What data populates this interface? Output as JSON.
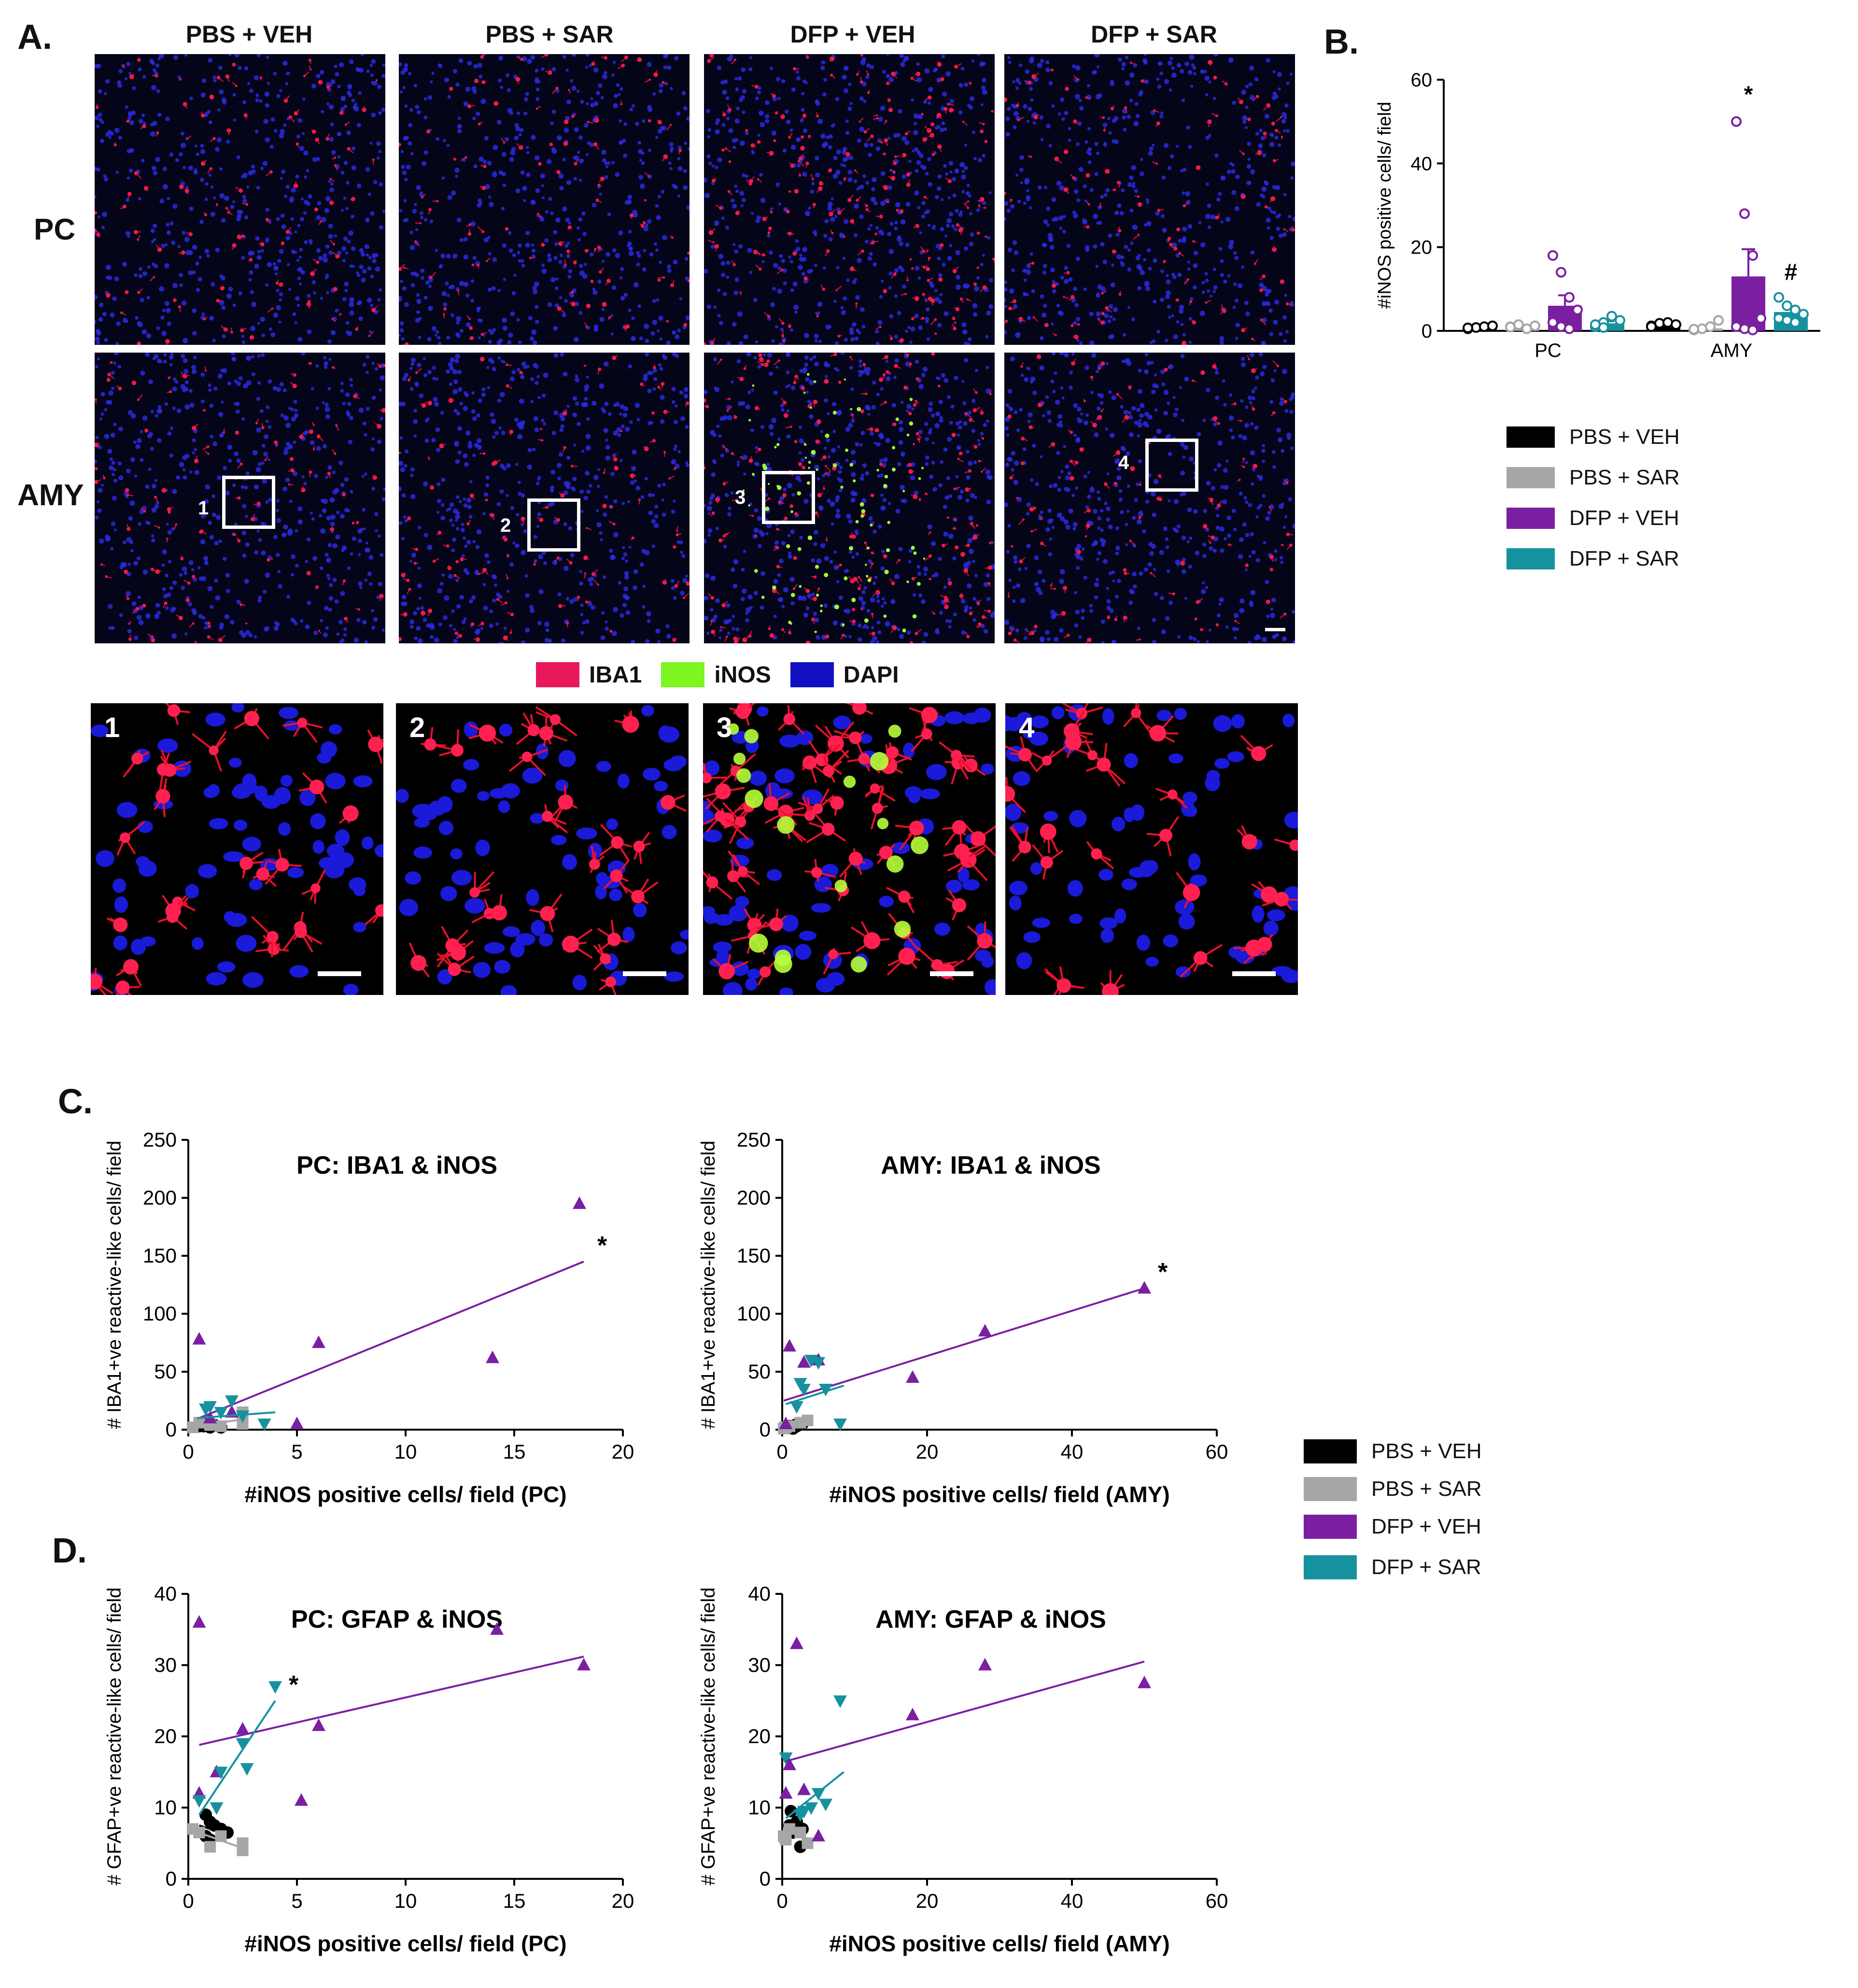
{
  "panels": {
    "A": "A.",
    "B": "B.",
    "C": "C.",
    "D": "D."
  },
  "columns": [
    "PBS + VEH",
    "PBS + SAR",
    "DFP + VEH",
    "DFP + SAR"
  ],
  "rows": [
    "PC",
    "AMY"
  ],
  "insets": [
    "1",
    "2",
    "3",
    "4"
  ],
  "stain_legend": [
    {
      "label": "IBA1",
      "color": "#e8185a"
    },
    {
      "label": "iNOS",
      "color": "#7cf520"
    },
    {
      "label": "DAPI",
      "color": "#1010c0"
    }
  ],
  "groups": [
    {
      "label": "PBS + VEH",
      "color": "#000000"
    },
    {
      "label": "PBS + SAR",
      "color": "#a6a6a6"
    },
    {
      "label": "DFP + VEH",
      "color": "#7b1fa2"
    },
    {
      "label": "DFP + SAR",
      "color": "#16929f"
    }
  ],
  "chart_data": [
    {
      "id": "B",
      "type": "bar",
      "ylabel": "#iNOS positive cells/ field",
      "ylim": [
        0,
        60
      ],
      "yticks": [
        0,
        20,
        40,
        60
      ],
      "categories": [
        "PC",
        "AMY"
      ],
      "series": [
        {
          "name": "PBS + VEH",
          "values": [
            0.8,
            1.5
          ],
          "points": [
            [
              0.5,
              0.8,
              1,
              1.2,
              0.7
            ],
            [
              1.2,
              1.8,
              2,
              1.5,
              1
            ]
          ]
        },
        {
          "name": "PBS + SAR",
          "values": [
            1.0,
            0.6
          ],
          "points": [
            [
              1,
              1.5,
              0.5,
              1.2,
              0.9
            ],
            [
              0.2,
              0.5,
              1,
              2.5,
              0.4
            ]
          ]
        },
        {
          "name": "DFP + VEH",
          "values": [
            6.0,
            13.0
          ],
          "sem": [
            2.5,
            6.5
          ],
          "points": [
            [
              18,
              14,
              8,
              5,
              2,
              1,
              0.5
            ],
            [
              50,
              28,
              18,
              3,
              1,
              0.5,
              0.2
            ]
          ]
        },
        {
          "name": "DFP + SAR",
          "values": [
            1.8,
            4.5
          ],
          "sem": [
            0.5,
            1.2
          ],
          "points": [
            [
              1,
              2,
              3.5,
              2.5,
              1.5,
              0.8
            ],
            [
              8,
              6,
              5,
              4,
              3,
              2.5,
              2
            ]
          ]
        }
      ],
      "annotations": [
        {
          "text": "*",
          "category": "AMY",
          "series": "DFP + VEH"
        },
        {
          "text": "#",
          "category": "AMY",
          "series": "DFP + SAR"
        }
      ]
    },
    {
      "id": "C-PC",
      "type": "scatter",
      "title": "PC: IBA1 & iNOS",
      "xlabel": "#iNOS positive cells/ field (PC)",
      "ylabel": "# IBA1+ve reactive-like cells/ field",
      "xlim": [
        0,
        20
      ],
      "ylim": [
        0,
        250
      ],
      "xticks": [
        0,
        5,
        10,
        15,
        20
      ],
      "yticks": [
        0,
        50,
        100,
        150,
        200,
        250
      ],
      "series": [
        {
          "name": "PBS + VEH",
          "x": [
            0.5,
            0.8,
            1,
            1.2,
            0.7,
            1.5
          ],
          "y": [
            3,
            5,
            2,
            4,
            3,
            2
          ],
          "fit": [
            [
              0.3,
              4
            ],
            [
              1.8,
              3
            ]
          ]
        },
        {
          "name": "PBS + SAR",
          "x": [
            0.2,
            1,
            1.5,
            2.5,
            2.5,
            0.5
          ],
          "y": [
            2,
            4,
            3,
            15,
            5,
            6
          ],
          "fit": [
            [
              0.2,
              3
            ],
            [
              2.6,
              9
            ]
          ]
        },
        {
          "name": "DFP + VEH",
          "x": [
            18,
            14,
            6,
            0.5,
            5,
            2,
            1
          ],
          "y": [
            195,
            62,
            75,
            78,
            5,
            15,
            10
          ],
          "fit": [
            [
              0.5,
              10
            ],
            [
              18.2,
              145
            ]
          ]
        },
        {
          "name": "DFP + SAR",
          "x": [
            1,
            2,
            3.5,
            2.5,
            1.5,
            0.8
          ],
          "y": [
            20,
            25,
            5,
            12,
            15,
            18
          ],
          "fit": [
            [
              0.4,
              10
            ],
            [
              4,
              15
            ]
          ]
        }
      ],
      "annotations": [
        {
          "text": "*",
          "series": "DFP + VEH"
        }
      ]
    },
    {
      "id": "C-AMY",
      "type": "scatter",
      "title": "AMY: IBA1 & iNOS",
      "xlabel": "#iNOS positive cells/ field (AMY)",
      "ylabel": "# IBA1+ve reactive-like cells/ field",
      "xlim": [
        0,
        60
      ],
      "ylim": [
        0,
        250
      ],
      "xticks": [
        0,
        20,
        40,
        60
      ],
      "yticks": [
        0,
        50,
        100,
        150,
        200,
        250
      ],
      "series": [
        {
          "name": "PBS + VEH",
          "x": [
            1.2,
            1.8,
            2,
            1.5,
            1,
            2.8
          ],
          "y": [
            2,
            4,
            3,
            1,
            3,
            5
          ]
        },
        {
          "name": "PBS + SAR",
          "x": [
            0.2,
            0.5,
            1,
            2.5,
            3.5,
            0.4
          ],
          "y": [
            1,
            2,
            3,
            6,
            8,
            2
          ]
        },
        {
          "name": "DFP + VEH",
          "x": [
            50,
            28,
            18,
            3,
            1,
            0.5,
            5
          ],
          "y": [
            122,
            85,
            45,
            58,
            72,
            5,
            60
          ],
          "fit": [
            [
              0.2,
              25
            ],
            [
              50,
              122
            ]
          ]
        },
        {
          "name": "DFP + SAR",
          "x": [
            8,
            6,
            5,
            4,
            3,
            2.5,
            2
          ],
          "y": [
            5,
            35,
            58,
            60,
            35,
            40,
            20
          ],
          "fit": [
            [
              0.5,
              22
            ],
            [
              8.5,
              38
            ]
          ]
        }
      ],
      "annotations": [
        {
          "text": "*",
          "series": "DFP + VEH"
        }
      ]
    },
    {
      "id": "D-PC",
      "type": "scatter",
      "title": "PC: GFAP & iNOS",
      "xlabel": "#iNOS positive cells/ field (PC)",
      "ylabel": "# GFAP+ve reactive-like cells/ field",
      "xlim": [
        0,
        20
      ],
      "ylim": [
        0,
        40
      ],
      "xticks": [
        0,
        5,
        10,
        15,
        20
      ],
      "yticks": [
        0,
        10,
        20,
        30,
        40
      ],
      "series": [
        {
          "name": "PBS + VEH",
          "x": [
            0.8,
            1.5,
            1,
            1.2,
            1.8,
            0.8,
            1
          ],
          "y": [
            9,
            7,
            8,
            7.5,
            6.5,
            6,
            5.5
          ],
          "fit": [
            [
              0.5,
              7.5
            ],
            [
              2,
              6
            ]
          ]
        },
        {
          "name": "PBS + SAR",
          "x": [
            0.2,
            1,
            1.5,
            2.5,
            2.5,
            0.5
          ],
          "y": [
            7,
            4.5,
            6,
            5,
            4,
            6.5
          ],
          "fit": [
            [
              0.2,
              6.8
            ],
            [
              2.6,
              4.2
            ]
          ]
        },
        {
          "name": "DFP + VEH",
          "x": [
            0.5,
            14.2,
            18.2,
            2.5,
            6,
            5.2,
            1.3,
            0.5
          ],
          "y": [
            36,
            35,
            30,
            21,
            21.5,
            11,
            15,
            12
          ],
          "fit": [
            [
              0.5,
              18.8
            ],
            [
              18.2,
              31.2
            ]
          ]
        },
        {
          "name": "DFP + SAR",
          "x": [
            4,
            2.5,
            2.7,
            1.5,
            1.3,
            0.5
          ],
          "y": [
            27,
            19,
            15.5,
            15,
            10,
            11
          ],
          "fit": [
            [
              0.5,
              9
            ],
            [
              4,
              25
            ]
          ]
        }
      ],
      "annotations": [
        {
          "text": "*",
          "series": "DFP + SAR"
        }
      ]
    },
    {
      "id": "D-AMY",
      "type": "scatter",
      "title": "AMY: GFAP & iNOS",
      "xlabel": "#iNOS positive cells/ field (AMY)",
      "ylabel": "# GFAP+ve reactive-like cells/ field",
      "xlim": [
        0,
        60
      ],
      "ylim": [
        0,
        40
      ],
      "xticks": [
        0,
        20,
        40,
        60
      ],
      "yticks": [
        0,
        10,
        20,
        30,
        40
      ],
      "series": [
        {
          "name": "PBS + VEH",
          "x": [
            1.2,
            1.8,
            2,
            1.5,
            1,
            2.8,
            2.5
          ],
          "y": [
            9.5,
            7,
            8,
            6.5,
            7.5,
            7,
            4.5
          ]
        },
        {
          "name": "PBS + SAR",
          "x": [
            0.2,
            0.5,
            1,
            2.5,
            3.5,
            0.4
          ],
          "y": [
            6,
            5.5,
            7,
            6.5,
            5,
            5.8
          ]
        },
        {
          "name": "DFP + VEH",
          "x": [
            50,
            28,
            18,
            2,
            1,
            0.5,
            3,
            5
          ],
          "y": [
            27.5,
            30,
            23,
            33,
            16,
            12,
            12.5,
            6
          ]
        },
        {
          "name": "DFP + SAR",
          "x": [
            8,
            6,
            5,
            4,
            3,
            2.5,
            0.5
          ],
          "y": [
            25,
            10.5,
            12,
            10,
            9.5,
            9,
            17
          ],
          "fit": [
            [
              0.5,
              8.5
            ],
            [
              8.5,
              15
            ]
          ]
        }
      ],
      "fits_extra": [
        {
          "series": "DFP + VEH",
          "from": [
            0.5,
            16.5
          ],
          "to": [
            50,
            30.5
          ]
        }
      ]
    }
  ]
}
